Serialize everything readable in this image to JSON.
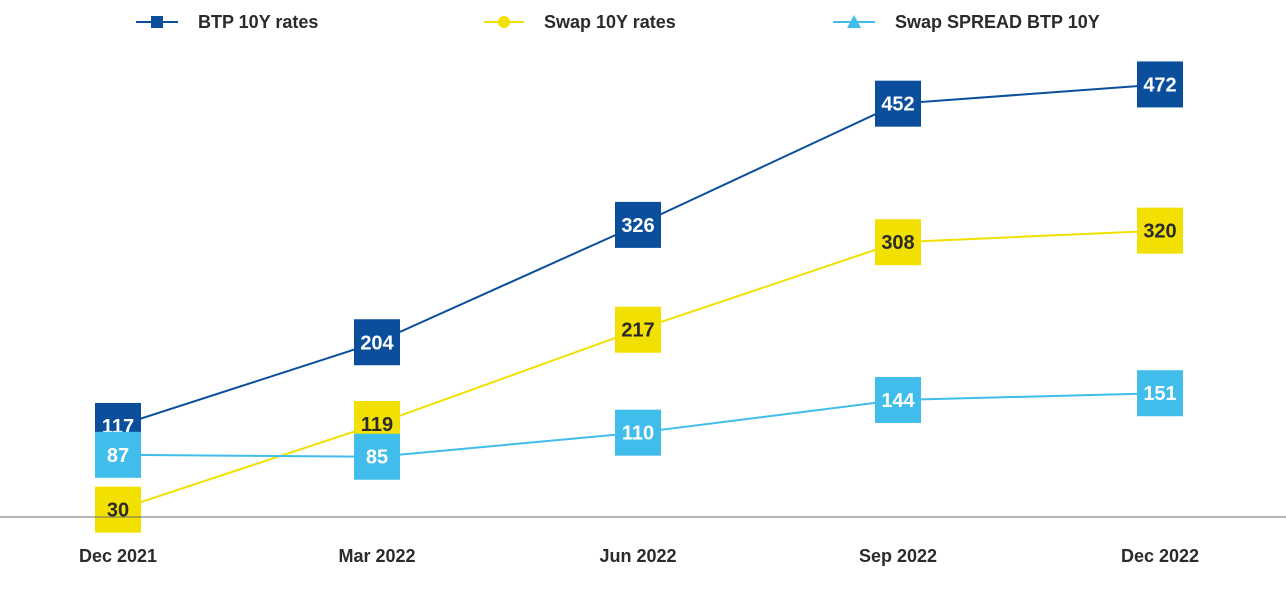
{
  "chart_data": {
    "type": "line",
    "categories": [
      "Dec 2021",
      "Mar 2022",
      "Jun 2022",
      "Sep 2022",
      "Dec 2022"
    ],
    "series": [
      {
        "name": "BTP 10Y rates",
        "values": [
          117,
          204,
          326,
          452,
          472
        ],
        "color": "#0b4f9c",
        "label_text_color": "#ffffff",
        "marker": "square-icon"
      },
      {
        "name": "Swap 10Y rates",
        "values": [
          30,
          119,
          217,
          308,
          320
        ],
        "color": "#f2e000",
        "label_text_color": "#2b2b2b",
        "marker": "circle-icon"
      },
      {
        "name": "Swap SPREAD BTP 10Y",
        "values": [
          87,
          85,
          110,
          144,
          151
        ],
        "color": "#40bdea",
        "label_text_color": "#ffffff",
        "marker": "triangle-icon"
      }
    ],
    "title": "",
    "xlabel": "",
    "ylabel": "",
    "ylim": [
      0,
      500
    ],
    "grid": false,
    "legend_position": "top",
    "data_labels": true
  }
}
